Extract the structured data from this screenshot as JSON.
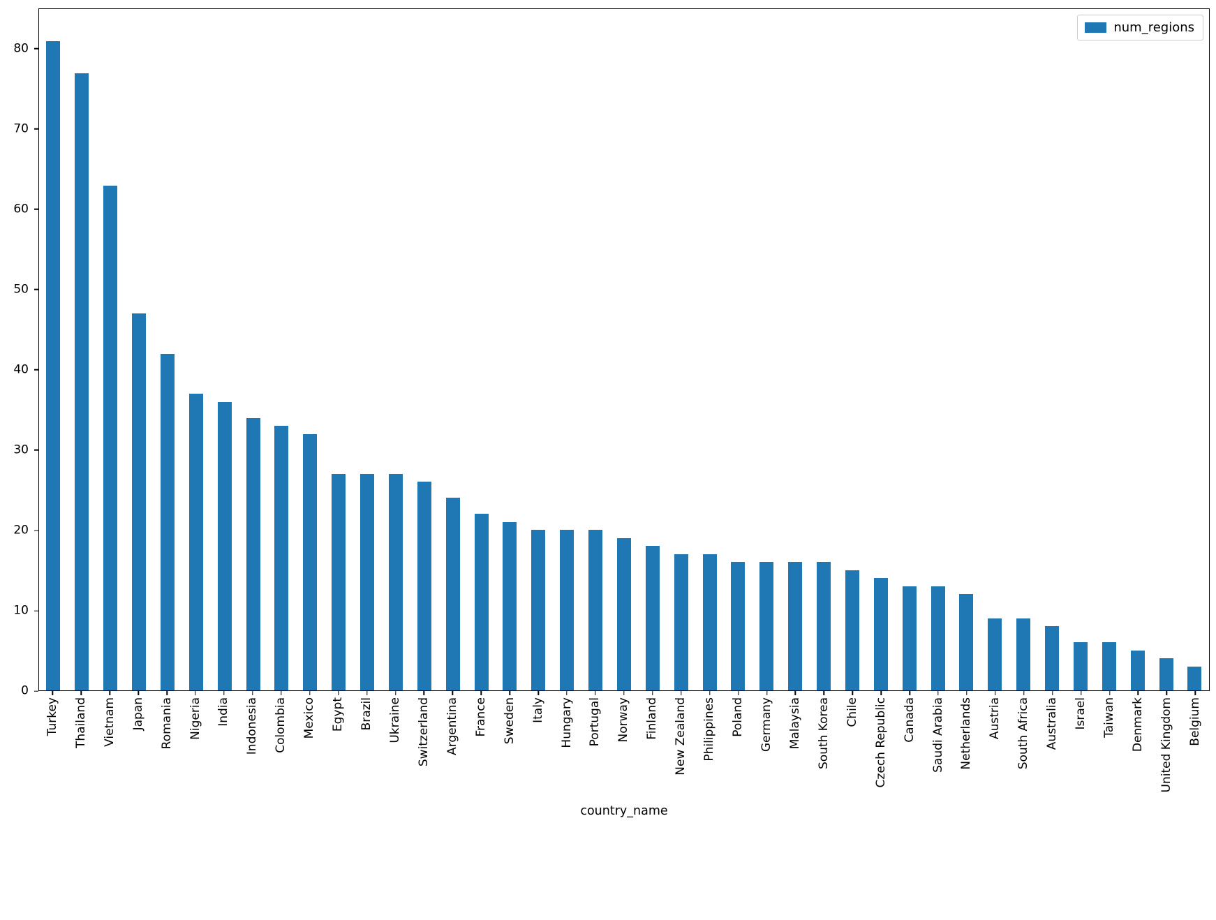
{
  "chart_data": {
    "type": "bar",
    "title": "",
    "xlabel": "country_name",
    "ylabel": "",
    "legend_label": "num_regions",
    "legend_position": "upper right",
    "bar_color": "#1f77b4",
    "grid": false,
    "ylim": [
      0,
      85
    ],
    "yticks": [
      0,
      10,
      20,
      30,
      40,
      50,
      60,
      70,
      80
    ],
    "categories": [
      "Turkey",
      "Thailand",
      "Vietnam",
      "Japan",
      "Romania",
      "Nigeria",
      "India",
      "Indonesia",
      "Colombia",
      "Mexico",
      "Egypt",
      "Brazil",
      "Ukraine",
      "Switzerland",
      "Argentina",
      "France",
      "Sweden",
      "Italy",
      "Hungary",
      "Portugal",
      "Norway",
      "Finland",
      "New Zealand",
      "Philippines",
      "Poland",
      "Germany",
      "Malaysia",
      "South Korea",
      "Chile",
      "Czech Republic",
      "Canada",
      "Saudi Arabia",
      "Netherlands",
      "Austria",
      "South Africa",
      "Australia",
      "Israel",
      "Taiwan",
      "Denmark",
      "United Kingdom",
      "Belgium"
    ],
    "values": [
      81,
      77,
      63,
      47,
      42,
      37,
      36,
      34,
      33,
      32,
      27,
      27,
      27,
      26,
      24,
      22,
      21,
      20,
      20,
      20,
      19,
      18,
      17,
      17,
      16,
      16,
      16,
      16,
      15,
      14,
      13,
      13,
      12,
      9,
      9,
      8,
      6,
      6,
      5,
      4,
      3
    ]
  }
}
